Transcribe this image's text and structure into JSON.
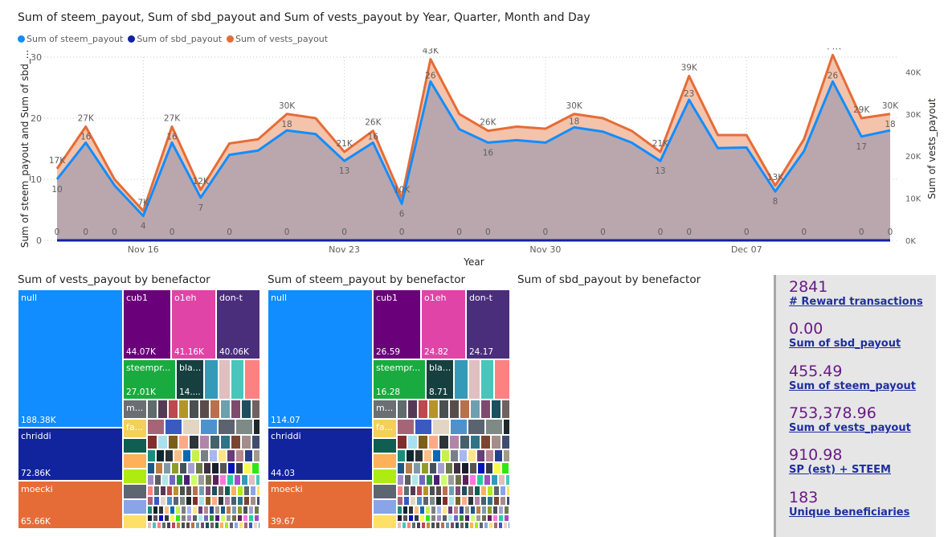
{
  "line_chart": {
    "title": "Sum of steem_payout, Sum of sbd_payout and Sum of vests_payout by Year, Quarter, Month and Day",
    "legend": [
      {
        "label": "Sum of steem_payout",
        "color": "#118DFF"
      },
      {
        "label": "Sum of sbd_payout",
        "color": "#12239E"
      },
      {
        "label": "Sum of vests_payout",
        "color": "#E66C37"
      }
    ],
    "y_left_label": "Sum of steem_payout and Sum of sbd_...",
    "y_right_label": "Sum of vests_payout",
    "x_label": "Year",
    "y_left_ticks": [
      "0",
      "10",
      "20",
      "30"
    ],
    "y_right_ticks": [
      "0K",
      "10K",
      "20K",
      "30K",
      "40K"
    ],
    "x_ticks": [
      {
        "label": "Nov 16",
        "index": 3
      },
      {
        "label": "Nov 23",
        "index": 10
      },
      {
        "label": "Nov 30",
        "index": 17
      },
      {
        "label": "Dec 07",
        "index": 24
      }
    ]
  },
  "chart_data": {
    "type": "area",
    "title": "Sum of steem_payout, Sum of sbd_payout and Sum of vests_payout by Year, Quarter, Month and Day",
    "xlabel": "Year",
    "ylabel": "Sum of steem_payout and Sum of sbd_payout",
    "y2label": "Sum of vests_payout",
    "ylim": [
      0,
      30
    ],
    "y2lim": [
      0,
      43500
    ],
    "grid": true,
    "legend_position": "top-left",
    "x": [
      "Nov 13",
      "Nov 14",
      "Nov 15",
      "Nov 16",
      "Nov 17",
      "Nov 18",
      "Nov 19",
      "Nov 20",
      "Nov 21",
      "Nov 22",
      "Nov 23",
      "Nov 24",
      "Nov 25",
      "Nov 26",
      "Nov 27",
      "Nov 28",
      "Nov 29",
      "Nov 30",
      "Dec 01",
      "Dec 02",
      "Dec 03",
      "Dec 04",
      "Dec 05",
      "Dec 06",
      "Dec 07",
      "Dec 08",
      "Dec 09",
      "Dec 10",
      "Dec 11",
      "Dec 12"
    ],
    "series": [
      {
        "name": "Sum of steem_payout",
        "axis": "left",
        "color": "#118DFF",
        "values": [
          10,
          16,
          9,
          4,
          16,
          7,
          14,
          14.7,
          18,
          17.4,
          13,
          16,
          6,
          26,
          18.2,
          16,
          16.4,
          16,
          18.5,
          17.8,
          16,
          13,
          23,
          15.1,
          15.2,
          8,
          14.6,
          26,
          17,
          18
        ]
      },
      {
        "name": "Sum of sbd_payout",
        "axis": "left",
        "color": "#12239E",
        "values": [
          0,
          0,
          0,
          0,
          0,
          0,
          0,
          0,
          0,
          0,
          0,
          0,
          0,
          0,
          0,
          0,
          0,
          0,
          0,
          0,
          0,
          0,
          0,
          0,
          0,
          0,
          0,
          0,
          0,
          0
        ]
      },
      {
        "name": "Sum of vests_payout",
        "axis": "right",
        "color": "#E66C37",
        "values": [
          17000,
          27000,
          14500,
          7000,
          27000,
          12000,
          23000,
          24000,
          30000,
          29000,
          21000,
          26000,
          10000,
          43000,
          30000,
          26000,
          27000,
          26500,
          30000,
          29000,
          26000,
          21000,
          39000,
          25000,
          25000,
          13000,
          24000,
          44000,
          29000,
          30000
        ]
      }
    ],
    "data_labels": {
      "steem": [
        {
          "i": 0,
          "text": "10"
        },
        {
          "i": 1,
          "text": "16"
        },
        {
          "i": 3,
          "text": "4"
        },
        {
          "i": 4,
          "text": "16"
        },
        {
          "i": 5,
          "text": "7"
        },
        {
          "i": 8,
          "text": "18"
        },
        {
          "i": 10,
          "text": "13"
        },
        {
          "i": 11,
          "text": "16"
        },
        {
          "i": 12,
          "text": "6"
        },
        {
          "i": 13,
          "text": "26"
        },
        {
          "i": 15,
          "text": "16"
        },
        {
          "i": 18,
          "text": "18"
        },
        {
          "i": 21,
          "text": "13"
        },
        {
          "i": 22,
          "text": "23"
        },
        {
          "i": 25,
          "text": "8"
        },
        {
          "i": 27,
          "text": "26"
        },
        {
          "i": 28,
          "text": "17"
        },
        {
          "i": 29,
          "text": "18"
        }
      ],
      "vests": [
        {
          "i": 0,
          "text": "17K"
        },
        {
          "i": 1,
          "text": "27K"
        },
        {
          "i": 3,
          "text": "7K"
        },
        {
          "i": 4,
          "text": "27K"
        },
        {
          "i": 5,
          "text": "12K"
        },
        {
          "i": 8,
          "text": "30K"
        },
        {
          "i": 10,
          "text": "21K"
        },
        {
          "i": 11,
          "text": "26K"
        },
        {
          "i": 12,
          "text": "10K"
        },
        {
          "i": 13,
          "text": "43K"
        },
        {
          "i": 15,
          "text": "26K"
        },
        {
          "i": 18,
          "text": "30K"
        },
        {
          "i": 21,
          "text": "21K"
        },
        {
          "i": 22,
          "text": "39K"
        },
        {
          "i": 25,
          "text": "13K"
        },
        {
          "i": 27,
          "text": "44K"
        },
        {
          "i": 28,
          "text": "29K"
        },
        {
          "i": 29,
          "text": "30K"
        }
      ],
      "sbd": [
        {
          "i": 0,
          "text": "0"
        },
        {
          "i": 1,
          "text": "0"
        },
        {
          "i": 2,
          "text": "0"
        },
        {
          "i": 4,
          "text": "0"
        },
        {
          "i": 6,
          "text": "0"
        },
        {
          "i": 8,
          "text": "0"
        },
        {
          "i": 10,
          "text": "0"
        },
        {
          "i": 12,
          "text": "0"
        },
        {
          "i": 14,
          "text": "0"
        },
        {
          "i": 15,
          "text": "0"
        },
        {
          "i": 17,
          "text": "0"
        },
        {
          "i": 19,
          "text": "0"
        },
        {
          "i": 21,
          "text": "0"
        },
        {
          "i": 22,
          "text": "0"
        },
        {
          "i": 24,
          "text": "0"
        },
        {
          "i": 26,
          "text": "0"
        },
        {
          "i": 28,
          "text": "0"
        },
        {
          "i": 29,
          "text": "0"
        }
      ]
    }
  },
  "treemaps": [
    {
      "title": "Sum of vests_payout by benefactor",
      "cells": [
        {
          "label": "null",
          "value": "188.38K",
          "color": "#118DFF"
        },
        {
          "label": "chriddi",
          "value": "72.86K",
          "color": "#12239E"
        },
        {
          "label": "moecki",
          "value": "65.66K",
          "color": "#E66C37"
        },
        {
          "label": "cub1",
          "value": "44.07K",
          "color": "#6B007B"
        },
        {
          "label": "o1eh",
          "value": "41.16K",
          "color": "#E044A7"
        },
        {
          "label": "don-t",
          "value": "40.06K",
          "color": "#4A2E7C"
        },
        {
          "label": "steempr...",
          "value": "27.01K",
          "color": "#1AAB40"
        },
        {
          "label": "bla...",
          "value": "14....",
          "color": "#15403F"
        },
        {
          "label": "m...",
          "value": "",
          "color": "#6B6F73"
        },
        {
          "label": "fa...",
          "value": "",
          "color": "#F2D05A"
        }
      ]
    },
    {
      "title": "Sum of steem_payout by benefactor",
      "cells": [
        {
          "label": "null",
          "value": "114.07",
          "color": "#118DFF"
        },
        {
          "label": "chriddi",
          "value": "44.03",
          "color": "#12239E"
        },
        {
          "label": "moecki",
          "value": "39.67",
          "color": "#E66C37"
        },
        {
          "label": "cub1",
          "value": "26.59",
          "color": "#6B007B"
        },
        {
          "label": "o1eh",
          "value": "24.82",
          "color": "#E044A7"
        },
        {
          "label": "don-t",
          "value": "24.17",
          "color": "#4A2E7C"
        },
        {
          "label": "steempr...",
          "value": "16.28",
          "color": "#1AAB40"
        },
        {
          "label": "bla...",
          "value": "8.71",
          "color": "#15403F"
        },
        {
          "label": "m...",
          "value": "",
          "color": "#6B6F73"
        },
        {
          "label": "fa...",
          "value": "",
          "color": "#F2D05A"
        }
      ]
    }
  ],
  "sbd_treemap": {
    "title": "Sum of sbd_payout by benefactor"
  },
  "small_cell_palette": [
    "#3599B8",
    "#DFBFBF",
    "#4AC5BB",
    "#FB8281",
    "#5F6B6D",
    "#553A55",
    "#BA4A4E",
    "#B59525",
    "#4A4F52",
    "#5A4C4A",
    "#B8704E",
    "#6CA0B0",
    "#7E4A6E",
    "#1E4F5E",
    "#6F6260",
    "#0F5E52",
    "#FFB05A",
    "#ADEB11",
    "#5D6570",
    "#8AA4E8",
    "#FFE066",
    "#A66577",
    "#3A5AC2",
    "#E3D5C4",
    "#4D92CC",
    "#5C6370",
    "#7E8A86",
    "#1F2929",
    "#7F2E2E",
    "#A9DFEE",
    "#7A5E1B",
    "#FFA988",
    "#2E3538",
    "#B285A8",
    "#44626C",
    "#2D7487",
    "#7A4530",
    "#A28E8A",
    "#414D6E",
    "#1B8C7C",
    "#0E2530",
    "#2B3236",
    "#FCBE84",
    "#0B69B3",
    "#C7F04C",
    "#798085",
    "#A8B7EE",
    "#FFE48A",
    "#6A3D76",
    "#B98790",
    "#27428A",
    "#A39A8C",
    "#1D5788",
    "#BA7E4A",
    "#7F99A8",
    "#8F9C2A",
    "#45505F",
    "#A6A0D2",
    "#6C7B4A",
    "#3F2F3F",
    "#191D2C",
    "#555455",
    "#0012B8",
    "#32374A",
    "#F9F94E",
    "#2EE80F",
    "#808080",
    "#9F8CC5",
    "#5B5D63",
    "#ACE8EA",
    "#7169C0",
    "#2E9435",
    "#4A1F73",
    "#CCFF66",
    "#9C9C9C",
    "#6F6F4A",
    "#5C1F5C",
    "#FF77DD",
    "#21D19F",
    "#A34BC9"
  ],
  "kpis": [
    {
      "value": "2841",
      "label": "# Reward transactions"
    },
    {
      "value": "0.00",
      "label": "Sum of sbd_payout"
    },
    {
      "value": "455.49",
      "label": "Sum of steem_payout"
    },
    {
      "value": "753,378.96",
      "label": "Sum of vests_payout"
    },
    {
      "value": "910.98",
      "label": "SP (est) + STEEM"
    },
    {
      "value": "183",
      "label": "Unique beneficiaries"
    }
  ]
}
